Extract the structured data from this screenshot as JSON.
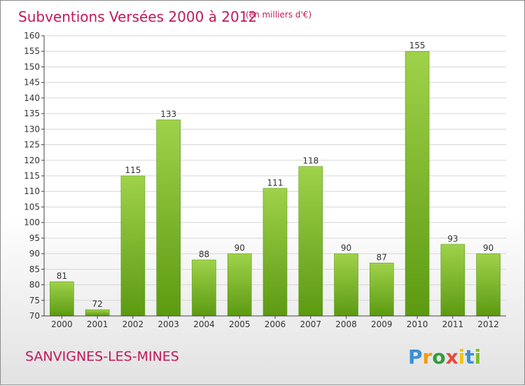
{
  "chart_data": {
    "type": "bar",
    "title": "Subventions Versées 2000 à 2012",
    "subtitle": "(en milliers d'€)",
    "categories": [
      "2000",
      "2001",
      "2002",
      "2003",
      "2004",
      "2005",
      "2006",
      "2007",
      "2008",
      "2009",
      "2010",
      "2011",
      "2012"
    ],
    "values": [
      81,
      72,
      115,
      133,
      88,
      90,
      111,
      118,
      90,
      87,
      155,
      93,
      90
    ],
    "ylim": [
      70,
      160
    ],
    "yticks": [
      70,
      75,
      80,
      85,
      90,
      95,
      100,
      105,
      110,
      115,
      120,
      125,
      130,
      135,
      140,
      145,
      150,
      155,
      160
    ],
    "grid": true,
    "bar_color": "#7cbf2a",
    "title_color": "#c2185b"
  },
  "place": "SANVIGNES-LES-MINES",
  "logo": {
    "letters": [
      "P",
      "r",
      "o",
      "x",
      "i",
      "t",
      "i"
    ],
    "colors": [
      "#3a8fd6",
      "#f39c12",
      "#2e9e3b",
      "#e74c3c",
      "#f1c40f",
      "#3a8fd6",
      "#7cbf2a"
    ]
  }
}
